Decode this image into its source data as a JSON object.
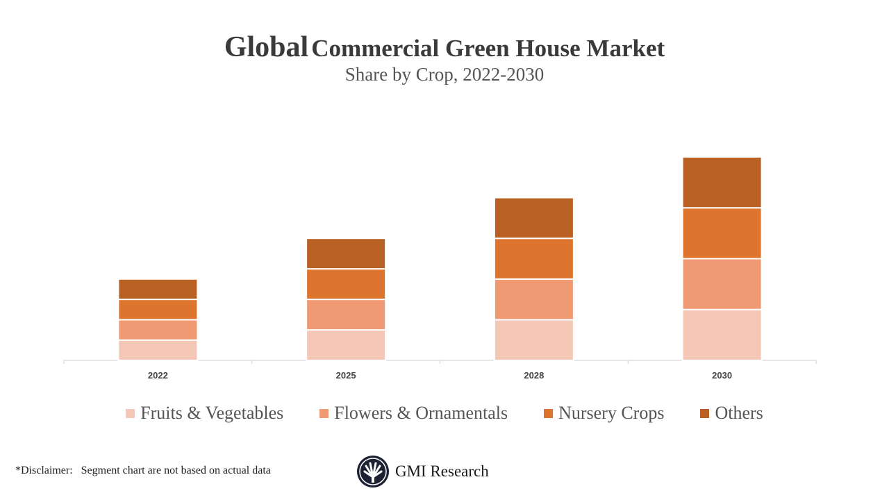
{
  "chart_data": {
    "type": "bar",
    "stacked": true,
    "title_prefix": "Global",
    "title_rest": "Commercial Green House Market",
    "subtitle": "Share by Crop, 2022-2030",
    "categories": [
      "2022",
      "2025",
      "2028",
      "2030"
    ],
    "series": [
      {
        "name": "Fruits & Vegetables",
        "color": "#F4C7B7",
        "values": [
          1.0,
          1.5,
          2.0,
          2.5
        ]
      },
      {
        "name": "Flowers & Ornamentals",
        "color": "#EF9A72",
        "values": [
          1.0,
          1.5,
          2.0,
          2.5
        ]
      },
      {
        "name": "Nursery Crops",
        "color": "#DE752F",
        "values": [
          1.0,
          1.5,
          2.0,
          2.5
        ]
      },
      {
        "name": "Others",
        "color": "#B96024",
        "values": [
          1.0,
          1.5,
          2.0,
          2.5
        ]
      }
    ],
    "xlabel": "",
    "ylabel": "",
    "y_axis_shown": false,
    "grid": false,
    "legend_position": "bottom"
  },
  "footer": {
    "disclaimer": "*Disclaimer:   Segment chart are not based on actual data",
    "logo_text": "GMI Research"
  }
}
